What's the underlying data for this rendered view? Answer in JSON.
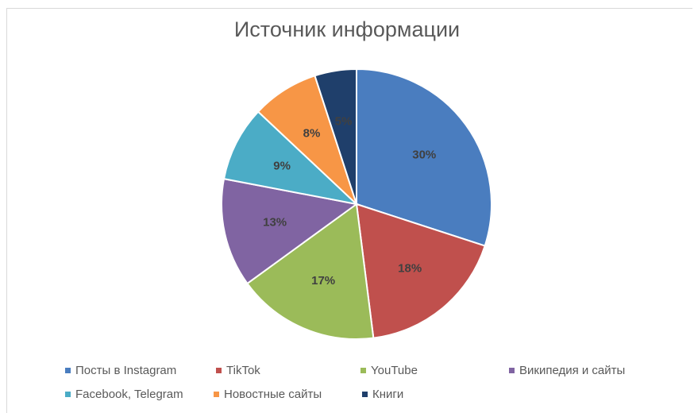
{
  "chart_data": {
    "type": "pie",
    "title": "Источник информации",
    "slices": [
      {
        "name": "Посты в Instagram",
        "value": 30,
        "label": "30%",
        "color": "#4a7dbf"
      },
      {
        "name": "TikTok",
        "value": 18,
        "label": "18%",
        "color": "#c0504d"
      },
      {
        "name": "YouTube",
        "value": 17,
        "label": "17%",
        "color": "#9bbb59"
      },
      {
        "name": "Википедия и сайты",
        "value": 13,
        "label": "13%",
        "color": "#8064a2"
      },
      {
        "name": "Facebook, Telegram",
        "value": 9,
        "label": "9%",
        "color": "#4bacc6"
      },
      {
        "name": "Новостные сайты",
        "value": 8,
        "label": "8%",
        "color": "#f79646"
      },
      {
        "name": "Книги",
        "value": 5,
        "label": "5%",
        "color": "#1f3f6b"
      }
    ],
    "legend_position": "bottom"
  }
}
